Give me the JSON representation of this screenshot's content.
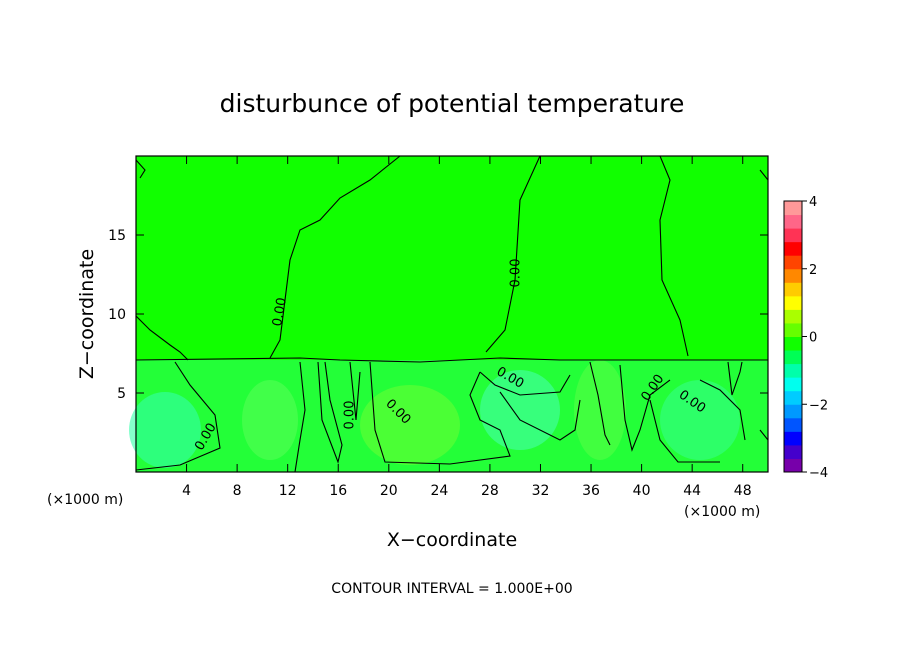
{
  "chart_data": {
    "type": "heatmap",
    "title": "disturbunce of potential temperature",
    "xlabel": "X−coordinate",
    "ylabel": "Z−coordinate",
    "x_unit": "(×1000 m)",
    "x_unit_right": "(×1000 m)",
    "xlim": [
      0,
      50
    ],
    "ylim": [
      0,
      20
    ],
    "x_ticks": [
      4,
      8,
      12,
      16,
      20,
      24,
      28,
      32,
      36,
      40,
      44,
      48
    ],
    "y_ticks": [
      5,
      10,
      15
    ],
    "contour_interval_text": "CONTOUR INTERVAL = 1.000E+00",
    "contour_level_label": "0.00",
    "colorbar": {
      "range": [
        -4,
        4
      ],
      "tick_values": [
        4,
        2,
        0,
        -2,
        -4
      ],
      "tick_labels": [
        "4",
        "2",
        "0",
        "−2",
        "−4"
      ],
      "colors": [
        "#7700aa",
        "#4400cc",
        "#0000ff",
        "#0055ff",
        "#0099ff",
        "#00ccff",
        "#00ffee",
        "#00ffaa",
        "#00ff55",
        "#11ff00",
        "#66ff00",
        "#aaff00",
        "#ffff00",
        "#ffcc00",
        "#ff8800",
        "#ff4400",
        "#ff0000",
        "#ff3355",
        "#ff6688",
        "#ff9999"
      ]
    },
    "field_base_color": "#11ff00",
    "field_lower_color": "#33ff66",
    "grid": false,
    "legend": "colorbar-right"
  }
}
